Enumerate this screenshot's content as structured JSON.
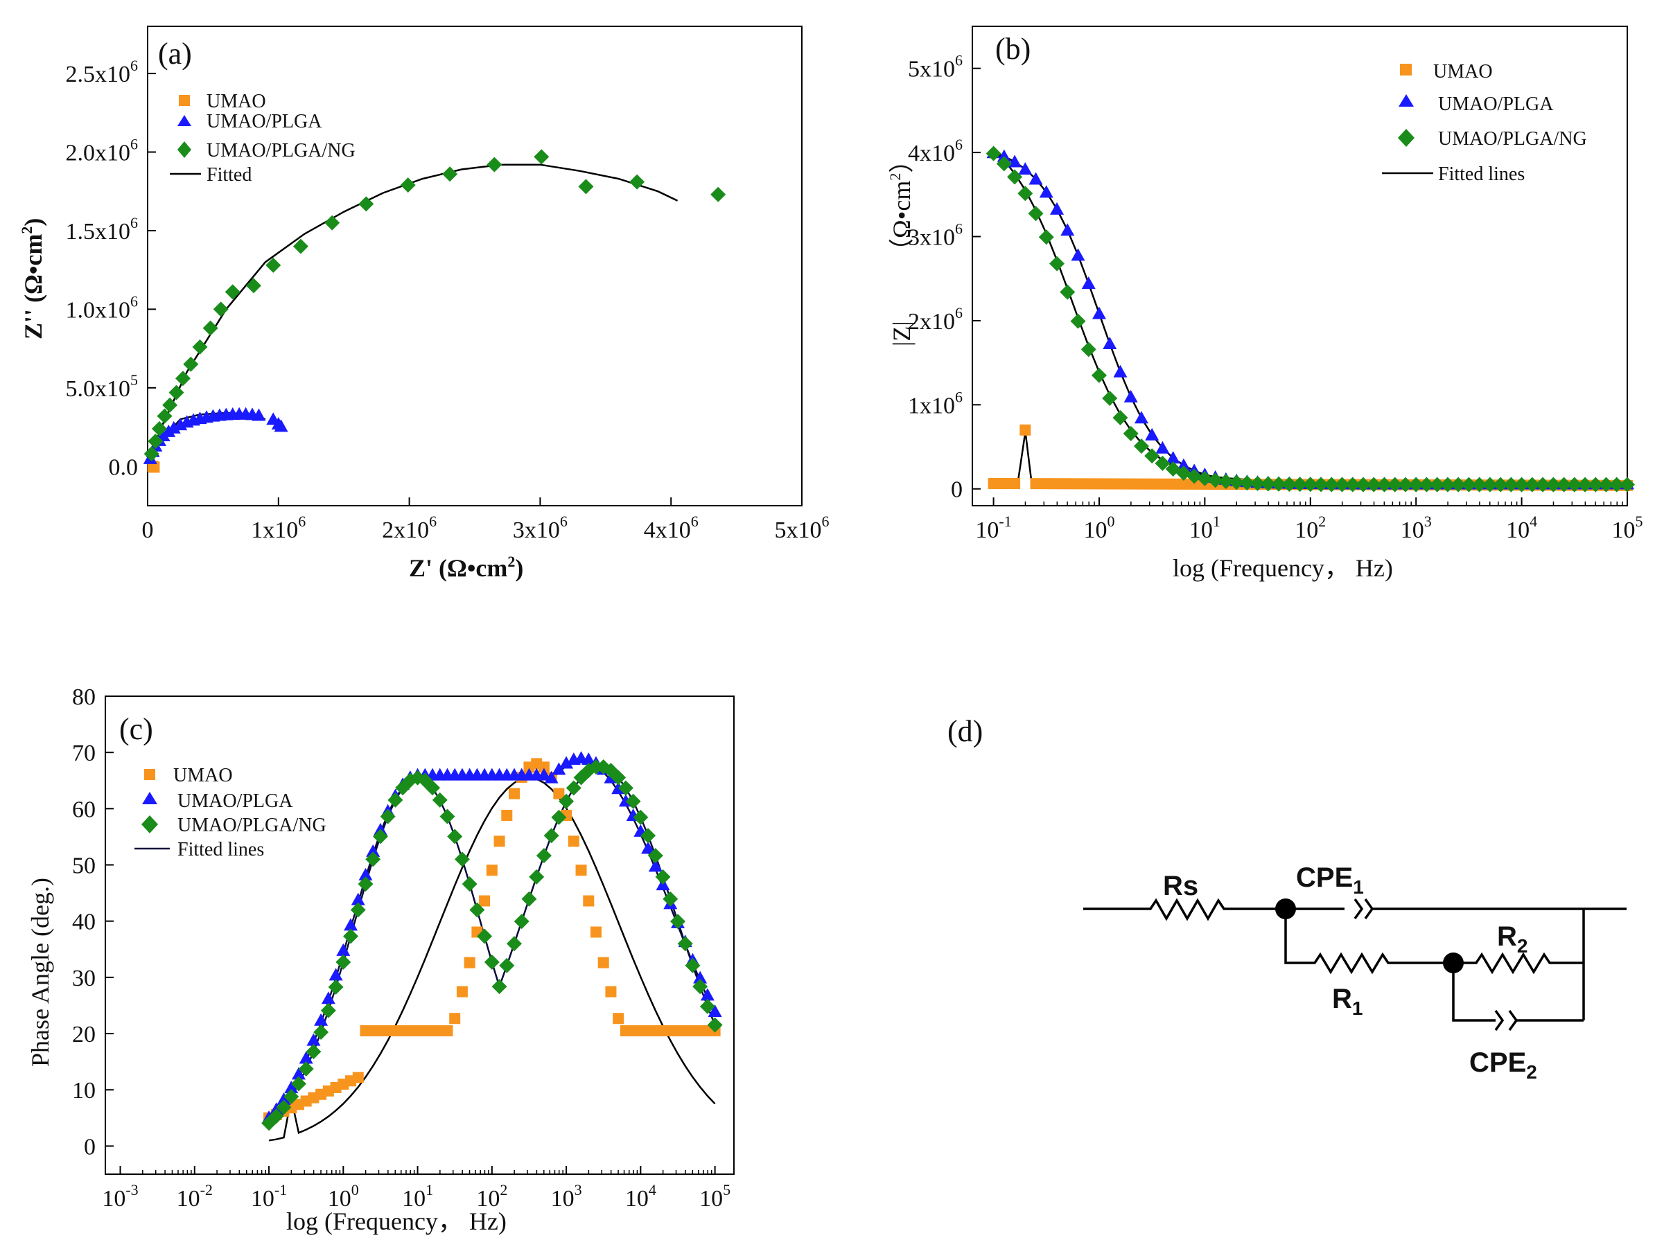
{
  "colors": {
    "umao": "#f7941d",
    "plga": "#1a1aff",
    "ng": "#1a8c1a",
    "fit": "#000000",
    "fit_c": "#0a0a3c"
  },
  "chart_data": [
    {
      "id": "a",
      "type": "scatter",
      "panel_label": "(a)",
      "xlabel": "Z' (Ω•cm",
      "xlabel_sup": "2",
      "xlabel_end": ")",
      "ylabel": "Z'' (Ω•cm",
      "ylabel_sup": "2",
      "ylabel_end": ")",
      "xlim": [
        0,
        5000000
      ],
      "ylim": [
        -250000,
        2800000
      ],
      "xticks": [
        {
          "v": 0,
          "base": "0",
          "exp": ""
        },
        {
          "v": 1000000,
          "base": "1x10",
          "exp": "6"
        },
        {
          "v": 2000000,
          "base": "2x10",
          "exp": "6"
        },
        {
          "v": 3000000,
          "base": "3x10",
          "exp": "6"
        },
        {
          "v": 4000000,
          "base": "4x10",
          "exp": "6"
        },
        {
          "v": 5000000,
          "base": "5x10",
          "exp": "6"
        }
      ],
      "yticks": [
        {
          "v": 0,
          "base": "0.0",
          "exp": ""
        },
        {
          "v": 500000,
          "base": "5.0x10",
          "exp": "5"
        },
        {
          "v": 1000000,
          "base": "1.0x10",
          "exp": "6"
        },
        {
          "v": 1500000,
          "base": "1.5x10",
          "exp": "6"
        },
        {
          "v": 2000000,
          "base": "2.0x10",
          "exp": "6"
        },
        {
          "v": 2500000,
          "base": "2.5x10",
          "exp": "6"
        }
      ],
      "legend": [
        "UMAO",
        "UMAO/PLGA",
        "UMAO/PLGA/NG",
        "Fitted"
      ],
      "series": [
        {
          "name": "UMAO",
          "marker": "square",
          "color_key": "umao",
          "points": [
            [
              40000,
              1000
            ],
            [
              50000,
              -5000
            ]
          ]
        },
        {
          "name": "UMAO/PLGA",
          "marker": "triangle",
          "color_key": "plga",
          "points": [
            [
              20000,
              50000
            ],
            [
              40000,
              95000
            ],
            [
              60000,
              130000
            ],
            [
              90000,
              165000
            ],
            [
              120000,
              195000
            ],
            [
              160000,
              222000
            ],
            [
              200000,
              245000
            ],
            [
              250000,
              265000
            ],
            [
              300000,
              282000
            ],
            [
              350000,
              295000
            ],
            [
              400000,
              305000
            ],
            [
              450000,
              313000
            ],
            [
              500000,
              320000
            ],
            [
              550000,
              325000
            ],
            [
              600000,
              329000
            ],
            [
              650000,
              332000
            ],
            [
              700000,
              333000
            ],
            [
              750000,
              333000
            ],
            [
              800000,
              330000
            ],
            [
              850000,
              325000
            ],
            [
              960000,
              300000
            ],
            [
              1000000,
              270000
            ],
            [
              1020000,
              255000
            ]
          ]
        },
        {
          "name": "UMAO/PLGA/NG",
          "marker": "diamond",
          "color_key": "ng",
          "points": [
            [
              30000,
              80000
            ],
            [
              60000,
              160000
            ],
            [
              90000,
              240000
            ],
            [
              130000,
              320000
            ],
            [
              170000,
              390000
            ],
            [
              220000,
              470000
            ],
            [
              270000,
              560000
            ],
            [
              330000,
              650000
            ],
            [
              400000,
              760000
            ],
            [
              480000,
              880000
            ],
            [
              560000,
              1000000
            ],
            [
              650000,
              1110000
            ],
            [
              810000,
              1150000
            ],
            [
              960000,
              1280000
            ],
            [
              1170000,
              1400000
            ],
            [
              1410000,
              1550000
            ],
            [
              1670000,
              1670000
            ],
            [
              1990000,
              1790000
            ],
            [
              2310000,
              1860000
            ],
            [
              2650000,
              1920000
            ],
            [
              3010000,
              1970000
            ],
            [
              3350000,
              1780000
            ],
            [
              3740000,
              1810000
            ],
            [
              4360000,
              1730000
            ]
          ]
        }
      ],
      "fits": [
        {
          "color_key": "fit",
          "points": [
            [
              0,
              0
            ],
            [
              100000,
              160000
            ],
            [
              250000,
              300000
            ],
            [
              400000,
              330000
            ],
            [
              600000,
              340000
            ],
            [
              800000,
              330000
            ],
            [
              900000,
              300000
            ]
          ]
        },
        {
          "color_key": "fit",
          "points": [
            [
              0,
              0
            ],
            [
              100000,
              240000
            ],
            [
              300000,
              600000
            ],
            [
              600000,
              1000000
            ],
            [
              900000,
              1300000
            ],
            [
              1200000,
              1480000
            ],
            [
              1500000,
              1620000
            ],
            [
              1800000,
              1740000
            ],
            [
              2100000,
              1830000
            ],
            [
              2400000,
              1890000
            ],
            [
              2700000,
              1920000
            ],
            [
              3000000,
              1920000
            ],
            [
              3300000,
              1880000
            ],
            [
              3600000,
              1830000
            ],
            [
              3900000,
              1750000
            ],
            [
              4050000,
              1690000
            ]
          ]
        }
      ]
    },
    {
      "id": "b",
      "type": "scatter",
      "panel_label": "(b)",
      "xlabel": "log (Frequency，  Hz)",
      "ylabel_left": "|Z|",
      "ylabel_right": "（Ω•cm",
      "ylabel_sup": "2",
      "ylabel_end": "）",
      "xscale": "log",
      "xlim": [
        0.063,
        100000
      ],
      "ylim": [
        -200000,
        5500000
      ],
      "xticks": [
        {
          "v": 0.1,
          "base": "10",
          "exp": "-1"
        },
        {
          "v": 1,
          "base": "10",
          "exp": "0"
        },
        {
          "v": 10,
          "base": "10",
          "exp": "1"
        },
        {
          "v": 100,
          "base": "10",
          "exp": "2"
        },
        {
          "v": 1000,
          "base": "10",
          "exp": "3"
        },
        {
          "v": 10000,
          "base": "10",
          "exp": "4"
        },
        {
          "v": 100000,
          "base": "10",
          "exp": "5"
        }
      ],
      "yticks": [
        {
          "v": 0,
          "base": "0",
          "exp": ""
        },
        {
          "v": 1000000,
          "base": "1x10",
          "exp": "6"
        },
        {
          "v": 2000000,
          "base": "2x10",
          "exp": "6"
        },
        {
          "v": 3000000,
          "base": "3x10",
          "exp": "6"
        },
        {
          "v": 4000000,
          "base": "4x10",
          "exp": "6"
        },
        {
          "v": 5000000,
          "base": "5x10",
          "exp": "6"
        }
      ],
      "legend": [
        "UMAO",
        "UMAO/PLGA",
        "UMAO/PLGA/NG",
        "Fitted lines"
      ],
      "series": [
        {
          "name": "UMAO",
          "marker": "square",
          "color_key": "umao",
          "kind": "umao_mag"
        },
        {
          "name": "UMAO/PLGA",
          "marker": "triangle",
          "color_key": "plga",
          "kind": "plga_mag"
        },
        {
          "name": "UMAO/PLGA/NG",
          "marker": "diamond",
          "color_key": "ng",
          "kind": "ng_mag"
        }
      ]
    },
    {
      "id": "c",
      "type": "scatter",
      "panel_label": "(c)",
      "xlabel": "log (Frequency，  Hz)",
      "ylabel": "Phase Angle (deg.)",
      "xscale": "log",
      "xlim": [
        0.00063,
        180000
      ],
      "ylim": [
        -5,
        80
      ],
      "xticks": [
        {
          "v": 0.001,
          "base": "10",
          "exp": "-3"
        },
        {
          "v": 0.01,
          "base": "10",
          "exp": "-2"
        },
        {
          "v": 0.1,
          "base": "10",
          "exp": "-1"
        },
        {
          "v": 1,
          "base": "10",
          "exp": "0"
        },
        {
          "v": 10,
          "base": "10",
          "exp": "1"
        },
        {
          "v": 100,
          "base": "10",
          "exp": "2"
        },
        {
          "v": 1000,
          "base": "10",
          "exp": "3"
        },
        {
          "v": 10000,
          "base": "10",
          "exp": "4"
        },
        {
          "v": 100000,
          "base": "10",
          "exp": "5"
        }
      ],
      "yticks": [
        0,
        10,
        20,
        30,
        40,
        50,
        60,
        70,
        80
      ],
      "legend": [
        "UMAO",
        "UMAO/PLGA",
        "UMAO/PLGA/NG",
        "Fitted lines"
      ],
      "series": [
        {
          "name": "UMAO",
          "marker": "square",
          "color_key": "umao",
          "kind": "umao_phase"
        },
        {
          "name": "UMAO/PLGA",
          "marker": "triangle",
          "color_key": "plga",
          "kind": "plga_phase"
        },
        {
          "name": "UMAO/PLGA/NG",
          "marker": "diamond",
          "color_key": "ng",
          "kind": "ng_phase"
        }
      ]
    }
  ],
  "circuit": {
    "panel_label": "(d)",
    "rs": "Rs",
    "cpe1": "CPE",
    "cpe1_sub": "1",
    "r1": "R",
    "r1_sub": "1",
    "r2": "R",
    "r2_sub": "2",
    "cpe2": "CPE",
    "cpe2_sub": "2"
  }
}
